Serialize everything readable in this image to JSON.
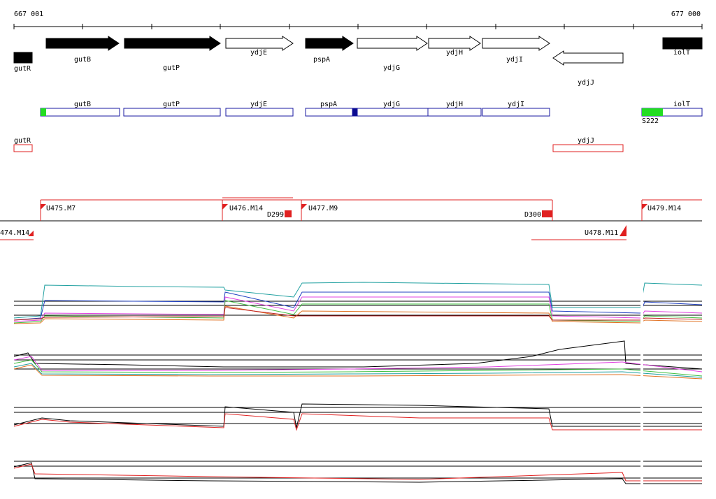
{
  "scale": {
    "start": "667 001",
    "end": "677 000"
  },
  "genes": [
    {
      "label": "gutR"
    },
    {
      "label": "gutB"
    },
    {
      "label": "gutP"
    },
    {
      "label": "ydjE"
    },
    {
      "label": "pspA"
    },
    {
      "label": "ydjG"
    },
    {
      "label": "ydjH"
    },
    {
      "label": "ydjI"
    },
    {
      "label": "ydjJ"
    },
    {
      "label": "iolT"
    }
  ],
  "transcripts": [
    {
      "label": "gutB"
    },
    {
      "label": "gutP"
    },
    {
      "label": "ydjE"
    },
    {
      "label": "pspA"
    },
    {
      "label": "ydjG"
    },
    {
      "label": "ydjH"
    },
    {
      "label": "ydjI"
    },
    {
      "label": "iolT"
    },
    {
      "label": "S222"
    }
  ],
  "antisense": [
    {
      "label": "gutR"
    },
    {
      "label": "ydjJ"
    }
  ],
  "segments": [
    {
      "label": "U475.M7"
    },
    {
      "label": "U476.M14"
    },
    {
      "label": "D299"
    },
    {
      "label": "U477.M9"
    },
    {
      "label": "D300"
    },
    {
      "label": "U479.M14"
    },
    {
      "label": "474.M14"
    },
    {
      "label": "U478.M11"
    }
  ]
}
